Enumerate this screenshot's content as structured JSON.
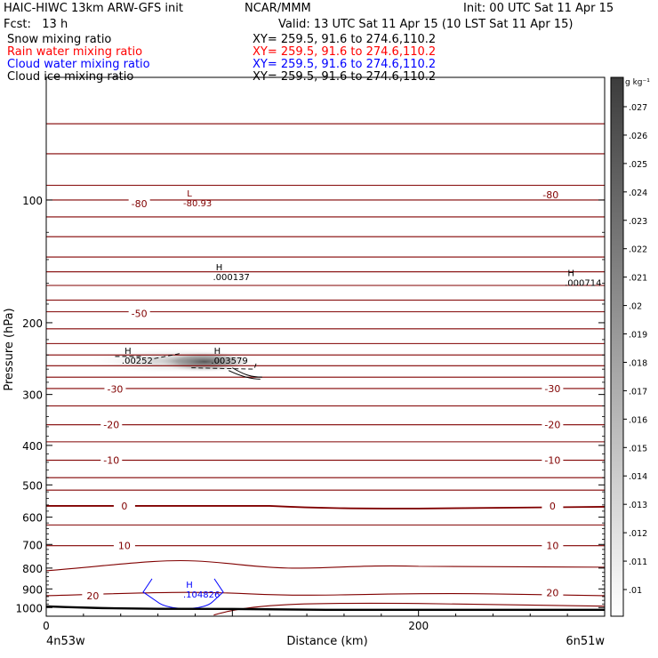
{
  "header": {
    "line1_left": "HAIC-HIWC 13km ARW-GFS init",
    "line1_mid": "NCAR/MMM",
    "line1_right": "Init: 00 UTC Sat 11 Apr 15",
    "line2_left": "Fcst:   13 h",
    "line2_right": "Valid: 13 UTC Sat 11 Apr 15 (10 LST Sat 11 Apr 15)"
  },
  "legend": [
    {
      "label": "Snow mixing ratio",
      "xy": "XY= 259.5, 91.6 to 274.6,110.2",
      "color": "#000000"
    },
    {
      "label": "Rain water mixing ratio",
      "xy": "XY= 259.5, 91.6 to 274.6,110.2",
      "color": "#ff0000"
    },
    {
      "label": "Cloud water mixing ratio",
      "xy": "XY= 259.5, 91.6 to 274.6,110.2",
      "color": "#0000ff"
    },
    {
      "label": "Cloud ice mixing ratio",
      "xy": "XY= 259.5, 91.6 to 274.6,110.2",
      "color": "#000000"
    }
  ],
  "chart_data": {
    "type": "line",
    "title": "",
    "xlabel": "Distance (km)",
    "ylabel": "Pressure (hPa)",
    "xlim": [
      0,
      300
    ],
    "ylim": [
      1050,
      50
    ],
    "yscale": "log",
    "x_ticks": [
      0,
      100,
      200,
      300
    ],
    "x_tick_labels": [
      "0",
      "200"
    ],
    "x_tick_label_values": [
      0,
      200
    ],
    "y_ticks": [
      100,
      200,
      300,
      400,
      500,
      600,
      700,
      800,
      900,
      1000
    ],
    "y_tick_labels": [
      "100",
      "200",
      "300",
      "400",
      "500",
      "600",
      "700",
      "800",
      "900",
      "1000"
    ],
    "endpoint_left": "4n53w",
    "endpoint_right": "6n51w",
    "temperature_color": "#800000",
    "isotherm_pressures": [
      65,
      77,
      92,
      100,
      110,
      123,
      138,
      150,
      162,
      176,
      188,
      207,
      225,
      240,
      255,
      272,
      290,
      320,
      356,
      392,
      435,
      480,
      515,
      563,
      627,
      705,
      800,
      935,
      992
    ],
    "isotherm_labels": [
      {
        "text": "-80",
        "x": 50,
        "p": 102
      },
      {
        "text": "-80",
        "x": 271,
        "p": 97
      },
      {
        "text": "-50",
        "x": 50,
        "p": 190
      },
      {
        "text": "-30",
        "x": 37,
        "p": 291
      },
      {
        "text": "-30",
        "x": 272,
        "p": 290
      },
      {
        "text": "-20",
        "x": 35,
        "p": 356
      },
      {
        "text": "-20",
        "x": 272,
        "p": 356
      },
      {
        "text": "-10",
        "x": 35,
        "p": 435
      },
      {
        "text": "-10",
        "x": 272,
        "p": 435
      },
      {
        "text": "0",
        "x": 42,
        "p": 563
      },
      {
        "text": "0",
        "x": 272,
        "p": 563
      },
      {
        "text": "10",
        "x": 42,
        "p": 705
      },
      {
        "text": "10",
        "x": 272,
        "p": 705
      },
      {
        "text": "20",
        "x": 25,
        "p": 935
      },
      {
        "text": "20",
        "x": 272,
        "p": 920
      }
    ],
    "extrema": [
      {
        "mark": "L",
        "value": "-80.93",
        "x": 75,
        "p": 102,
        "color": "#800000"
      },
      {
        "mark": "H",
        "value": ".000137",
        "x": 91,
        "p": 155,
        "color": "#000000"
      },
      {
        "mark": "H",
        "value": ".000714",
        "x": 280,
        "p": 160,
        "color": "#000000"
      },
      {
        "mark": "H",
        "value": ".00252",
        "x": 42,
        "p": 248,
        "color": "#000000"
      },
      {
        "mark": "H",
        "value": ".003579",
        "x": 90,
        "p": 248,
        "color": "#000000"
      },
      {
        "mark": "H",
        "value": ".104826",
        "x": 75,
        "p": 930,
        "color": "#0000ff"
      }
    ],
    "terrain": {
      "x": [
        0,
        10,
        30,
        60,
        100,
        150,
        200,
        250,
        300
      ],
      "p": [
        993,
        997,
        1003,
        1007,
        1008,
        1013,
        1013,
        1013,
        1013
      ]
    },
    "colorbar": {
      "unit": "g kg⁻¹",
      "values": [
        ".01",
        ".011",
        ".012",
        ".013",
        ".014",
        ".015",
        ".016",
        ".017",
        ".018",
        ".019",
        ".02",
        ".021",
        ".022",
        ".023",
        ".024",
        ".025",
        ".026",
        ".027"
      ]
    }
  }
}
